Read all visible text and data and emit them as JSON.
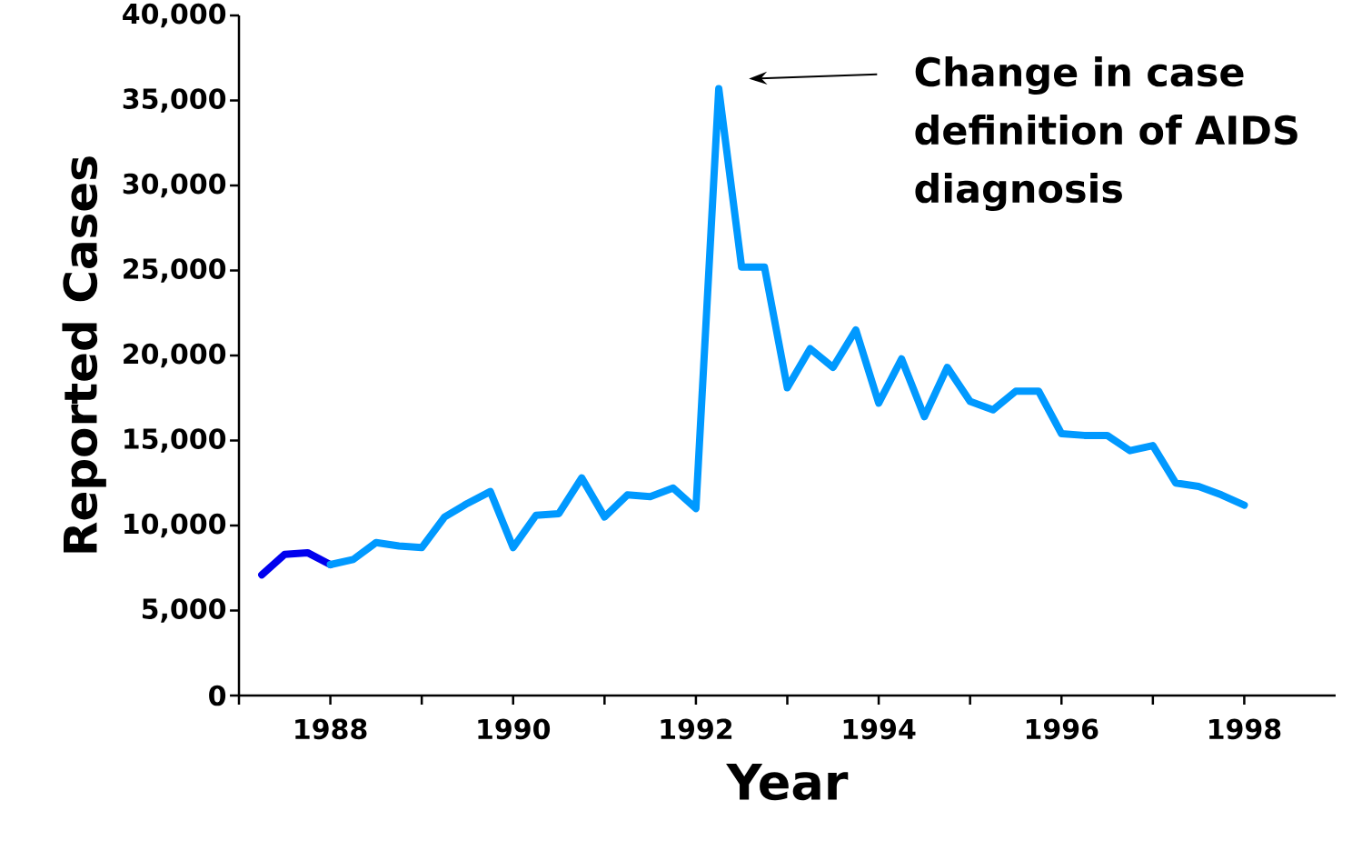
{
  "chart_data": {
    "type": "line",
    "xlabel": "Year",
    "ylabel": "Reported Cases",
    "xlim": [
      1987,
      1999
    ],
    "ylim": [
      0,
      40000
    ],
    "xticks": [
      {
        "value": 1987,
        "label": null
      },
      1988,
      {
        "value": 1989,
        "label": null
      },
      1990,
      {
        "value": 1991,
        "label": null
      },
      1992,
      {
        "value": 1993,
        "label": null
      },
      1994,
      {
        "value": 1995,
        "label": null
      },
      1996,
      {
        "value": 1997,
        "label": null
      },
      1998
    ],
    "yticks": [
      {
        "value": 0,
        "label": "0"
      },
      {
        "value": 5000,
        "label": "5,000"
      },
      {
        "value": 10000,
        "label": "10,000"
      },
      {
        "value": 15000,
        "label": "15,000"
      },
      {
        "value": 20000,
        "label": "20,000"
      },
      {
        "value": 25000,
        "label": "25,000"
      },
      {
        "value": 30000,
        "label": "30,000"
      },
      {
        "value": 35000,
        "label": "35,000"
      },
      {
        "value": 40000,
        "label": "40,000"
      }
    ],
    "grid": false,
    "marker": "none",
    "line_style": "solid",
    "annotations": [
      "Change in case definition of AIDS diagnosis"
    ],
    "series": [
      {
        "color": "#0000ee",
        "x": [
          1987.25,
          1987.5,
          1987.75,
          1988.0
        ],
        "values": [
          7100,
          8300,
          8400,
          7700
        ]
      },
      {
        "color": "#0099ff",
        "x": [
          1988.0,
          1988.25,
          1988.5,
          1988.75,
          1989.0,
          1989.25,
          1989.5,
          1989.75,
          1990.0,
          1990.25,
          1990.5,
          1990.75,
          1991.0,
          1991.25,
          1991.5,
          1991.75,
          1992.0,
          1992.25,
          1992.5,
          1992.75,
          1993.0,
          1993.25,
          1993.5,
          1993.75,
          1994.0,
          1994.25,
          1994.5,
          1994.75,
          1995.0,
          1995.25,
          1995.5,
          1995.75,
          1996.0,
          1996.25,
          1996.5,
          1996.75,
          1997.0,
          1997.25,
          1997.5,
          1997.75,
          1998.0
        ],
        "values": [
          7700,
          8000,
          9000,
          8800,
          8700,
          10500,
          11300,
          12000,
          8700,
          10600,
          10700,
          12800,
          10500,
          11800,
          11700,
          12200,
          11000,
          35700,
          25200,
          25200,
          18100,
          20400,
          19300,
          21500,
          17200,
          19800,
          16400,
          19300,
          17300,
          16800,
          17900,
          17900,
          15400,
          15300,
          15300,
          14400,
          14700,
          12500,
          12300,
          11800,
          11200
        ]
      }
    ]
  }
}
